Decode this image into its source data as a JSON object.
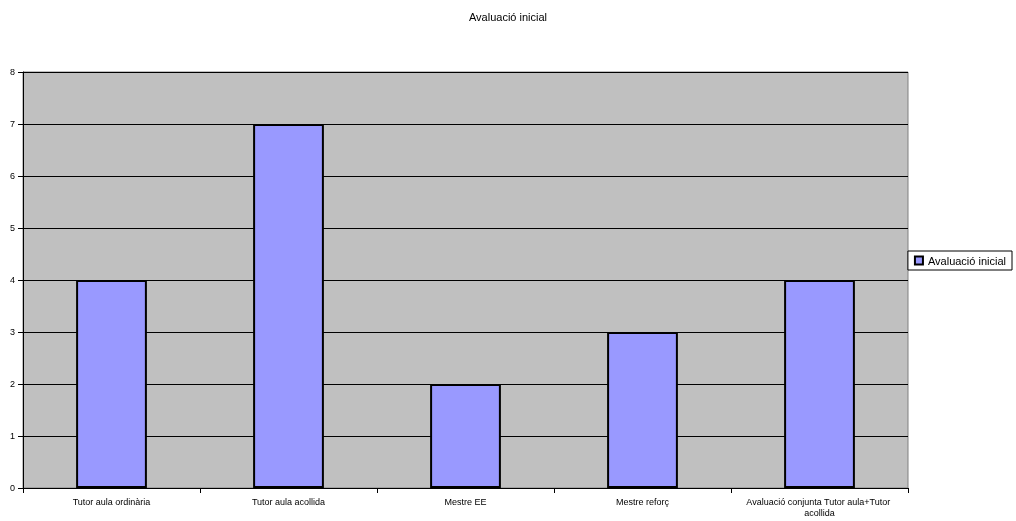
{
  "chart_data": {
    "type": "bar",
    "title": "Avaluació inicial",
    "categories": [
      "Tutor aula ordinària",
      "Tutor aula acollida",
      "Mestre EE",
      "Mestre reforç",
      "Avaluació conjunta Tutor aula+Tutor acollida"
    ],
    "series": [
      {
        "name": "Avaluació inicial",
        "color": "#9999ff",
        "values": [
          4,
          7,
          2,
          3,
          4
        ]
      }
    ],
    "ylim": [
      0,
      8
    ],
    "yticks": [
      0,
      1,
      2,
      3,
      4,
      5,
      6,
      7,
      8
    ],
    "grid": "y",
    "legend": "right"
  }
}
